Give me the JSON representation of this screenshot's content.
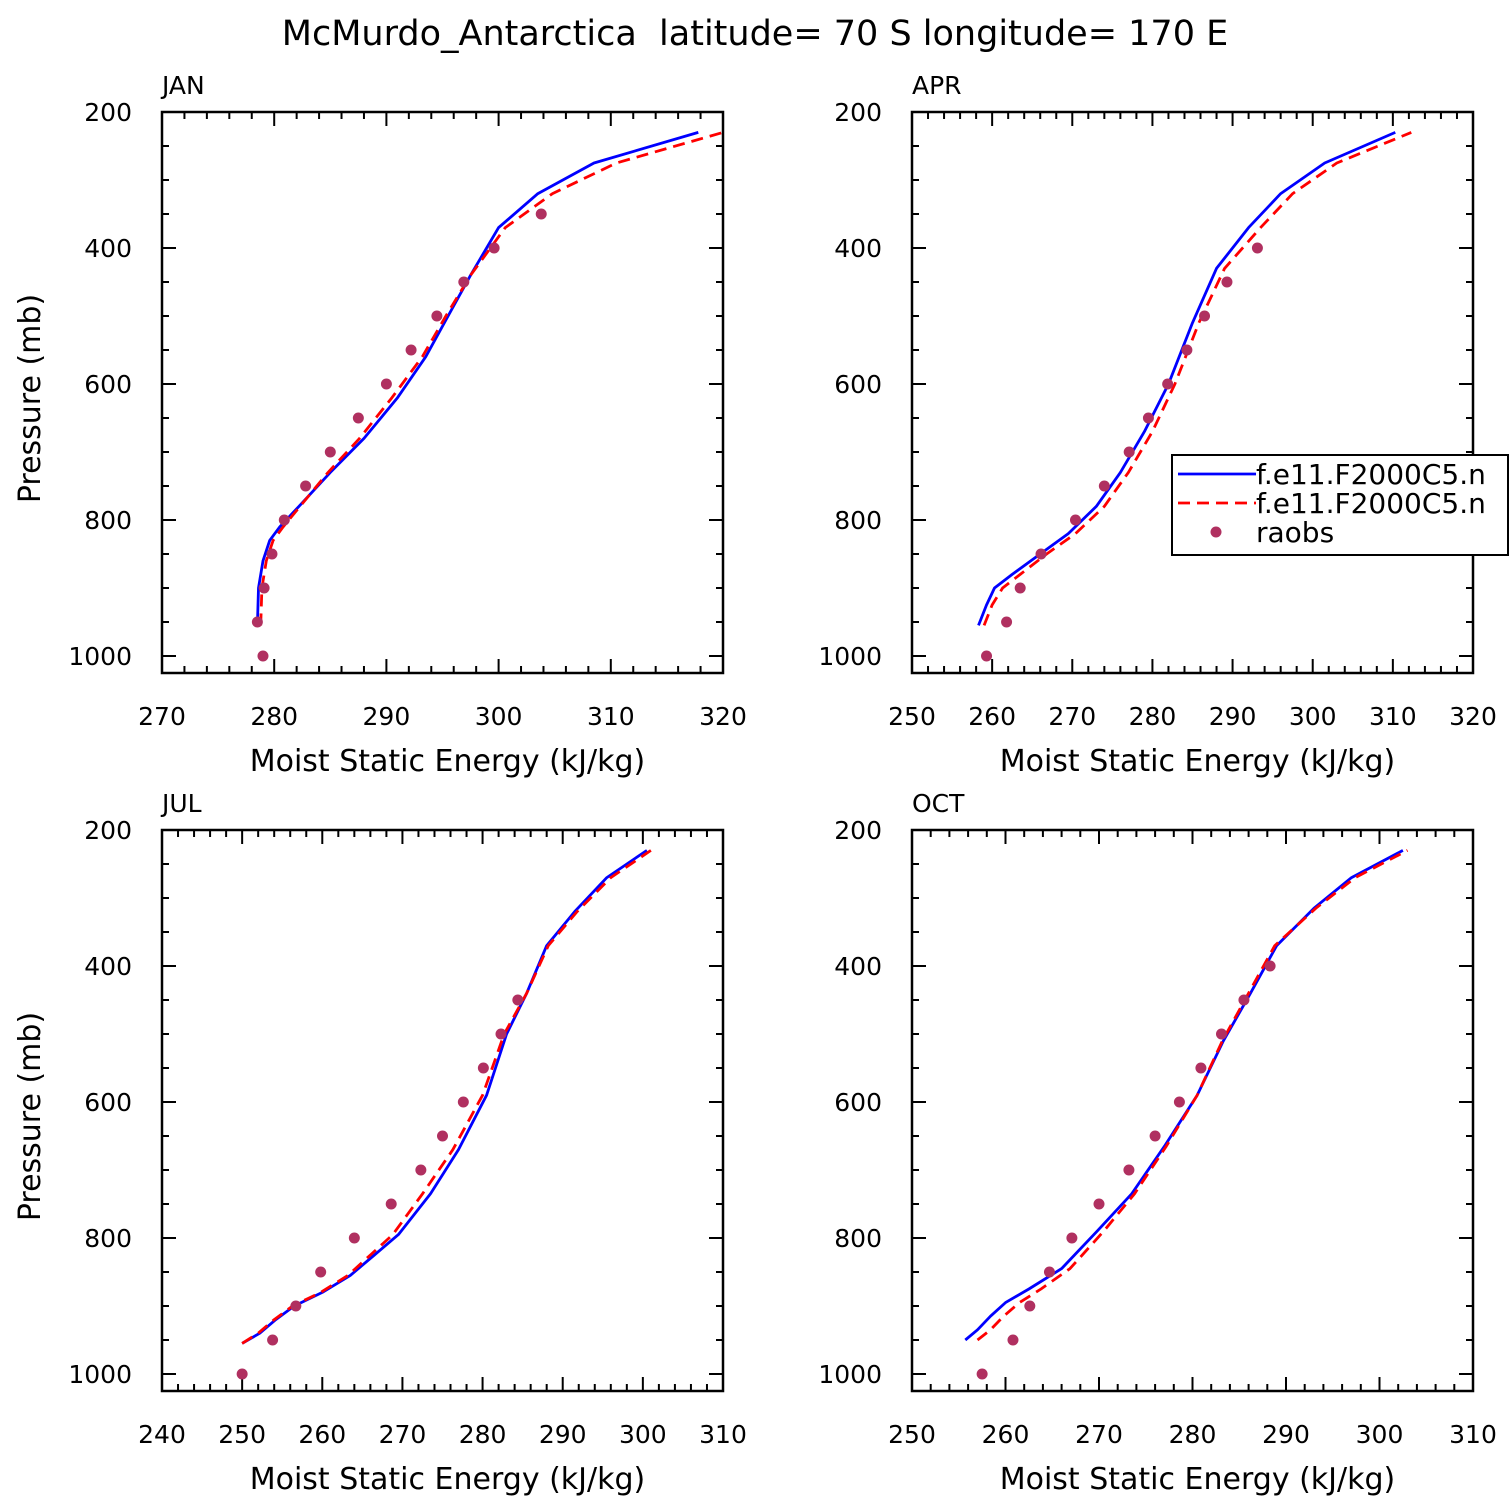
{
  "figure_title": "McMurdo_Antarctica  latitude= 70 S longitude= 170 E",
  "colors": {
    "series1": "#0000ff",
    "series2": "#ff0000",
    "raobs": "#b03060",
    "axis": "#000000"
  },
  "legend": {
    "entries": [
      "f.e11.F2000C5.n",
      "f.e11.F2000C5.n",
      "raobs"
    ]
  },
  "chart_data": [
    {
      "type": "line",
      "title": "JAN",
      "xlabel": "Moist Static Energy (kJ/kg)",
      "ylabel": "Pressure (mb)",
      "xlim": [
        270,
        320
      ],
      "xticks": [
        270,
        280,
        290,
        300,
        310,
        320
      ],
      "ylim": [
        200,
        1025
      ],
      "yticks": [
        200,
        400,
        600,
        800,
        1000
      ],
      "y_inverted": true,
      "series": [
        {
          "name": "f.e11.F2000C5.n",
          "style": "solid",
          "x": [
            278.5,
            278.6,
            279.0,
            279.6,
            280.5,
            282.2,
            285.0,
            288.0,
            291.0,
            293.5,
            295.5,
            297.5,
            300.0,
            303.5,
            308.5,
            317.8
          ],
          "y": [
            955,
            900,
            860,
            830,
            810,
            780,
            730,
            680,
            620,
            560,
            500,
            440,
            370,
            320,
            275,
            230
          ]
        },
        {
          "name": "f.e11.F2000C5.n",
          "style": "dashed",
          "x": [
            278.8,
            278.9,
            279.3,
            279.9,
            280.8,
            282.3,
            284.8,
            287.6,
            290.5,
            293.2,
            295.3,
            297.5,
            300.6,
            304.8,
            310.5,
            320.0
          ],
          "y": [
            955,
            900,
            860,
            830,
            810,
            780,
            730,
            680,
            620,
            560,
            500,
            440,
            370,
            320,
            275,
            230
          ]
        },
        {
          "name": "raobs",
          "style": "markers",
          "x": [
            279.0,
            278.5,
            279.1,
            279.8,
            280.9,
            282.8,
            285.0,
            287.5,
            290.0,
            292.2,
            294.5,
            296.9,
            299.6,
            303.8
          ],
          "y": [
            1000,
            950,
            900,
            850,
            800,
            750,
            700,
            650,
            600,
            550,
            500,
            450,
            400,
            350
          ]
        }
      ]
    },
    {
      "type": "line",
      "title": "APR",
      "xlabel": "Moist Static Energy (kJ/kg)",
      "ylabel": "",
      "xlim": [
        250,
        320
      ],
      "xticks": [
        250,
        260,
        270,
        280,
        290,
        300,
        310,
        320
      ],
      "ylim": [
        200,
        1025
      ],
      "yticks": [
        200,
        400,
        600,
        800,
        1000
      ],
      "y_inverted": true,
      "series": [
        {
          "name": "f.e11.F2000C5.n",
          "style": "solid",
          "x": [
            258.3,
            259.3,
            260.3,
            262.5,
            266.0,
            269.5,
            273.0,
            276.0,
            279.0,
            282.0,
            285.0,
            288.0,
            292.0,
            296.0,
            301.5,
            310.3
          ],
          "y": [
            955,
            925,
            900,
            880,
            850,
            820,
            780,
            730,
            670,
            600,
            510,
            430,
            370,
            320,
            275,
            230
          ]
        },
        {
          "name": "f.e11.F2000C5.n",
          "style": "dashed",
          "x": [
            259.0,
            260.0,
            261.3,
            263.5,
            266.8,
            270.4,
            274.0,
            277.0,
            280.0,
            282.8,
            285.8,
            289.0,
            293.5,
            297.5,
            303.0,
            312.3
          ],
          "y": [
            955,
            925,
            900,
            880,
            850,
            820,
            780,
            730,
            670,
            600,
            510,
            430,
            370,
            320,
            275,
            230
          ]
        },
        {
          "name": "raobs",
          "style": "markers",
          "x": [
            259.3,
            261.8,
            263.5,
            266.1,
            270.4,
            274.0,
            277.1,
            279.5,
            281.9,
            284.3,
            286.5,
            289.3,
            293.1
          ],
          "y": [
            1000,
            950,
            900,
            850,
            800,
            750,
            700,
            650,
            600,
            550,
            500,
            450,
            400
          ]
        }
      ]
    },
    {
      "type": "line",
      "title": "JUL",
      "xlabel": "Moist Static Energy (kJ/kg)",
      "ylabel": "Pressure (mb)",
      "xlim": [
        240,
        310
      ],
      "xticks": [
        240,
        250,
        260,
        270,
        280,
        290,
        300,
        310
      ],
      "ylim": [
        200,
        1025
      ],
      "yticks": [
        200,
        400,
        600,
        800,
        1000
      ],
      "y_inverted": true,
      "series": [
        {
          "name": "f.e11.F2000C5.n",
          "style": "solid",
          "x": [
            250.0,
            252.2,
            254.2,
            256.5,
            260.0,
            263.5,
            266.5,
            269.5,
            273.5,
            277.0,
            280.5,
            283.0,
            285.5,
            288.0,
            291.5,
            295.5,
            300.5
          ],
          "y": [
            955,
            940,
            920,
            900,
            880,
            855,
            825,
            795,
            735,
            670,
            590,
            500,
            440,
            370,
            320,
            270,
            230
          ]
        },
        {
          "name": "f.e11.F2000C5.n",
          "style": "dashed",
          "x": [
            250.0,
            252.0,
            254.0,
            256.3,
            259.8,
            263.2,
            266.0,
            268.8,
            272.5,
            276.3,
            280.0,
            282.7,
            285.5,
            288.2,
            291.8,
            296.0,
            301.0
          ],
          "y": [
            955,
            940,
            920,
            900,
            880,
            855,
            825,
            795,
            735,
            670,
            590,
            500,
            440,
            370,
            320,
            270,
            230
          ]
        },
        {
          "name": "raobs",
          "style": "markers",
          "x": [
            250.0,
            253.8,
            256.7,
            259.8,
            264.0,
            268.6,
            272.3,
            275.0,
            277.6,
            280.1,
            282.3,
            284.4
          ],
          "y": [
            1000,
            950,
            900,
            850,
            800,
            750,
            700,
            650,
            600,
            550,
            500,
            450
          ]
        }
      ]
    },
    {
      "type": "line",
      "title": "OCT",
      "xlabel": "Moist Static Energy (kJ/kg)",
      "ylabel": "",
      "xlim": [
        250,
        310
      ],
      "xticks": [
        250,
        260,
        270,
        280,
        290,
        300,
        310
      ],
      "ylim": [
        200,
        1025
      ],
      "yticks": [
        200,
        400,
        600,
        800,
        1000
      ],
      "y_inverted": true,
      "series": [
        {
          "name": "f.e11.F2000C5.n",
          "style": "solid",
          "x": [
            255.7,
            257.0,
            258.4,
            260.0,
            262.5,
            266.0,
            269.8,
            273.5,
            277.0,
            280.5,
            283.3,
            286.2,
            289.0,
            293.0,
            297.0,
            302.5
          ],
          "y": [
            950,
            935,
            915,
            895,
            875,
            845,
            790,
            735,
            665,
            590,
            510,
            440,
            370,
            315,
            270,
            230
          ]
        },
        {
          "name": "f.e11.F2000C5.n",
          "style": "dashed",
          "x": [
            257.0,
            258.4,
            259.8,
            261.5,
            263.8,
            266.9,
            270.5,
            273.8,
            277.2,
            280.5,
            283.2,
            286.0,
            288.8,
            293.2,
            297.4,
            303.0
          ],
          "y": [
            950,
            935,
            915,
            895,
            875,
            845,
            790,
            735,
            665,
            590,
            510,
            440,
            370,
            315,
            270,
            230
          ]
        },
        {
          "name": "raobs",
          "style": "markers",
          "x": [
            257.5,
            260.8,
            262.6,
            264.7,
            267.1,
            270.0,
            273.2,
            276.0,
            278.6,
            280.9,
            283.1,
            285.5,
            288.3
          ],
          "y": [
            1000,
            950,
            900,
            850,
            800,
            750,
            700,
            650,
            600,
            550,
            500,
            450,
            400
          ]
        }
      ]
    }
  ]
}
